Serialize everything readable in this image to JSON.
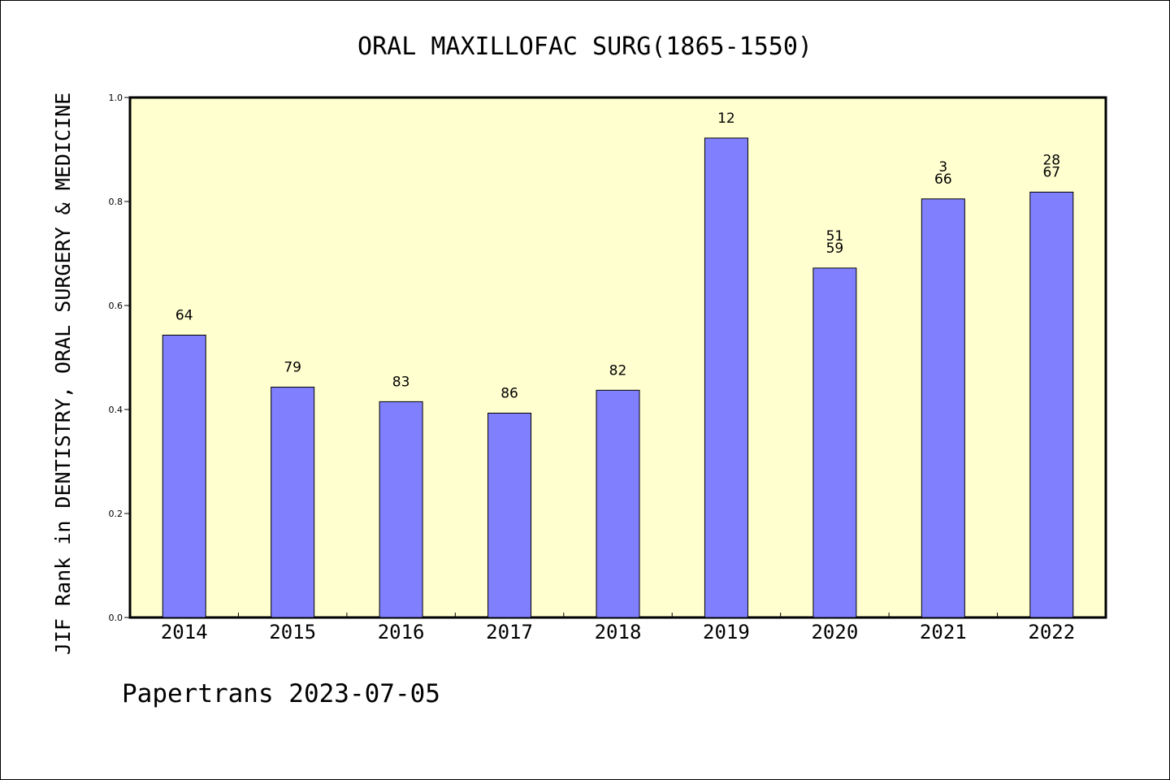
{
  "chart_data": {
    "type": "bar",
    "title": "ORAL MAXILLOFAC SURG(1865-1550)",
    "xlabel": "",
    "ylabel": "JIF Rank in DENTISTRY, ORAL SURGERY & MEDICINE",
    "categories": [
      "2014",
      "2015",
      "2016",
      "2017",
      "2018",
      "2019",
      "2020",
      "2021",
      "2022"
    ],
    "values": [
      0.543,
      0.443,
      0.415,
      0.393,
      0.437,
      0.922,
      0.672,
      0.805,
      0.818
    ],
    "bar_labels": [
      [
        "64"
      ],
      [
        "79"
      ],
      [
        "83"
      ],
      [
        "86"
      ],
      [
        "82"
      ],
      [
        "12"
      ],
      [
        "51",
        "59"
      ],
      [
        "3",
        "66"
      ],
      [
        "28",
        "67"
      ]
    ],
    "ylim": [
      0.0,
      1.0
    ],
    "yticks": [
      "0.0",
      "0.2",
      "0.4",
      "0.6",
      "0.8",
      "1.0"
    ],
    "grid": false,
    "colors": {
      "plot_background": "#FFFFD0",
      "bar_fill": "#8080FF",
      "bar_stroke": "#000000"
    },
    "footer": "Papertrans 2023-07-05"
  }
}
